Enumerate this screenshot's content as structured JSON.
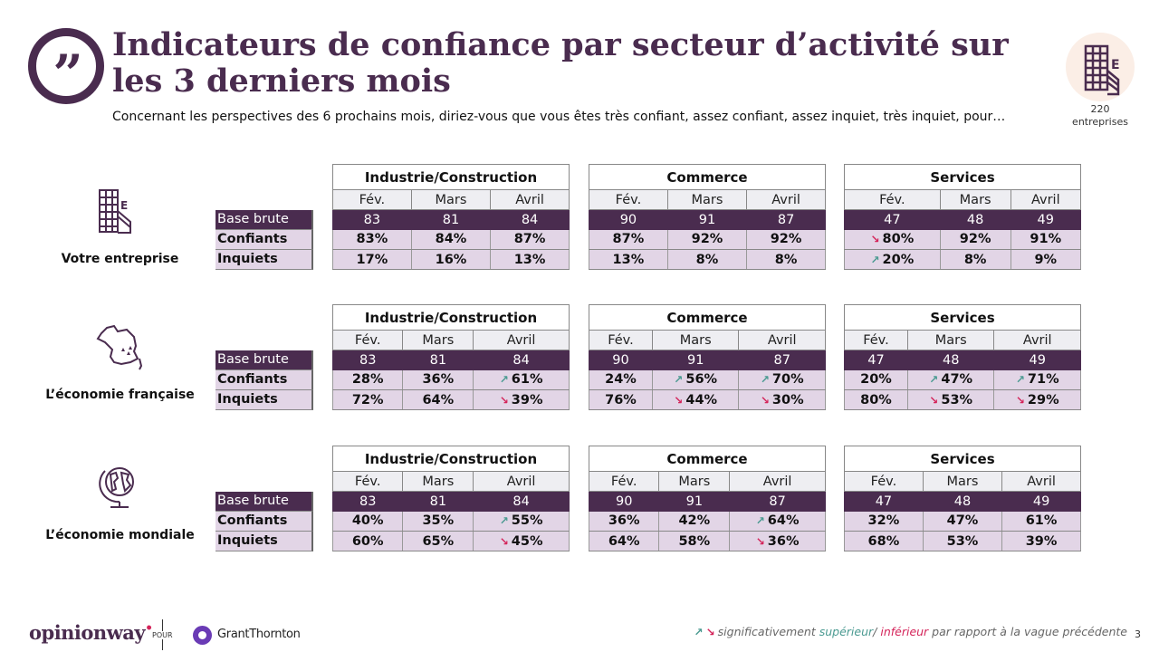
{
  "header": {
    "title": "Indicateurs de confiance par secteur d’activité sur les 3 derniers mois",
    "subtitle": "Concernant les perspectives des 6 prochains mois, diriez-vous que vous êtes très confiant, assez confiant, assez inquiet, très inquiet, pour…",
    "quote_glyph": "”"
  },
  "sample": {
    "count": "220",
    "label": "entreprises"
  },
  "row_labels": {
    "base": "Base brute",
    "confident": "Confiants",
    "worried": "Inquiets"
  },
  "months": [
    "Fév.",
    "Mars",
    "Avril"
  ],
  "colors": {
    "brand": "#4a2c4f",
    "up": "#4a9a91",
    "down": "#d4245a",
    "row_fill": "#e2d5e6"
  },
  "blocks": [
    {
      "label": "Votre entreprise",
      "icon": "building-icon",
      "sectors": [
        {
          "name": "Industrie/Construction",
          "base": [
            "83",
            "81",
            "84"
          ],
          "confident": [
            {
              "v": "83%"
            },
            {
              "v": "84%"
            },
            {
              "v": "87%"
            }
          ],
          "worried": [
            {
              "v": "17%"
            },
            {
              "v": "16%"
            },
            {
              "v": "13%"
            }
          ]
        },
        {
          "name": "Commerce",
          "base": [
            "90",
            "91",
            "87"
          ],
          "confident": [
            {
              "v": "87%"
            },
            {
              "v": "92%"
            },
            {
              "v": "92%"
            }
          ],
          "worried": [
            {
              "v": "13%"
            },
            {
              "v": "8%"
            },
            {
              "v": "8%"
            }
          ]
        },
        {
          "name": "Services",
          "base": [
            "47",
            "48",
            "49"
          ],
          "confident": [
            {
              "v": "80%",
              "trend": "down"
            },
            {
              "v": "92%"
            },
            {
              "v": "91%"
            }
          ],
          "worried": [
            {
              "v": "20%",
              "trend": "up"
            },
            {
              "v": "8%"
            },
            {
              "v": "9%"
            }
          ]
        }
      ]
    },
    {
      "label": "L’économie française",
      "icon": "france-map-icon",
      "sectors": [
        {
          "name": "Industrie/Construction",
          "base": [
            "83",
            "81",
            "84"
          ],
          "confident": [
            {
              "v": "28%"
            },
            {
              "v": "36%"
            },
            {
              "v": "61%",
              "trend": "up"
            }
          ],
          "worried": [
            {
              "v": "72%"
            },
            {
              "v": "64%"
            },
            {
              "v": "39%",
              "trend": "down"
            }
          ]
        },
        {
          "name": "Commerce",
          "base": [
            "90",
            "91",
            "87"
          ],
          "confident": [
            {
              "v": "24%"
            },
            {
              "v": "56%",
              "trend": "up"
            },
            {
              "v": "70%",
              "trend": "up"
            }
          ],
          "worried": [
            {
              "v": "76%"
            },
            {
              "v": "44%",
              "trend": "down"
            },
            {
              "v": "30%",
              "trend": "down"
            }
          ]
        },
        {
          "name": "Services",
          "base": [
            "47",
            "48",
            "49"
          ],
          "confident": [
            {
              "v": "20%"
            },
            {
              "v": "47%",
              "trend": "up"
            },
            {
              "v": "71%",
              "trend": "up"
            }
          ],
          "worried": [
            {
              "v": "80%"
            },
            {
              "v": "53%",
              "trend": "down"
            },
            {
              "v": "29%",
              "trend": "down"
            }
          ]
        }
      ]
    },
    {
      "label": "L’économie mondiale",
      "icon": "globe-icon",
      "sectors": [
        {
          "name": "Industrie/Construction",
          "base": [
            "83",
            "81",
            "84"
          ],
          "confident": [
            {
              "v": "40%"
            },
            {
              "v": "35%"
            },
            {
              "v": "55%",
              "trend": "up"
            }
          ],
          "worried": [
            {
              "v": "60%"
            },
            {
              "v": "65%"
            },
            {
              "v": "45%",
              "trend": "down"
            }
          ]
        },
        {
          "name": "Commerce",
          "base": [
            "90",
            "91",
            "87"
          ],
          "confident": [
            {
              "v": "36%"
            },
            {
              "v": "42%"
            },
            {
              "v": "64%",
              "trend": "up"
            }
          ],
          "worried": [
            {
              "v": "64%"
            },
            {
              "v": "58%"
            },
            {
              "v": "36%",
              "trend": "down"
            }
          ]
        },
        {
          "name": "Services",
          "base": [
            "47",
            "48",
            "49"
          ],
          "confident": [
            {
              "v": "32%"
            },
            {
              "v": "47%"
            },
            {
              "v": "61%"
            }
          ],
          "worried": [
            {
              "v": "68%"
            },
            {
              "v": "53%"
            },
            {
              "v": "39%"
            }
          ]
        }
      ]
    }
  ],
  "footer": {
    "brand": "opinionway",
    "pour": "POUR",
    "client": "GrantThornton",
    "legend_prefix": "significativement ",
    "legend_sup": "supérieur",
    "legend_sep": "/ ",
    "legend_inf": "inférieur",
    "legend_suffix": " par rapport à la vague précédente",
    "arrow_up": "↗",
    "arrow_down": "↘",
    "page": "3"
  }
}
